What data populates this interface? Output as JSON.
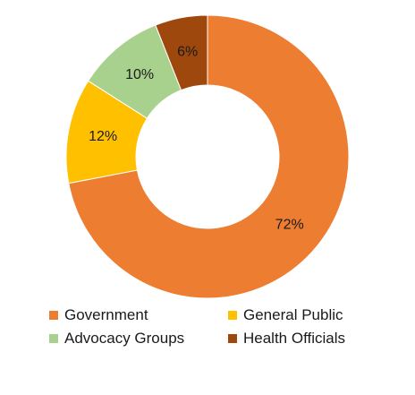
{
  "chart_data": {
    "type": "pie",
    "variant": "donut",
    "title": "",
    "legend_position": "bottom",
    "slices": [
      {
        "name": "Government",
        "value": 72,
        "label": "72%",
        "color": "#ED7D31"
      },
      {
        "name": "General Public",
        "value": 12,
        "label": "12%",
        "color": "#FFC000"
      },
      {
        "name": "Advocacy Groups",
        "value": 10,
        "label": "10%",
        "color": "#A9D18E"
      },
      {
        "name": "Health Officials",
        "value": 6,
        "label": "6%",
        "color": "#9E480E"
      }
    ],
    "legend_order": [
      "Government",
      "General Public",
      "Advocacy Groups",
      "Health Officials"
    ]
  }
}
